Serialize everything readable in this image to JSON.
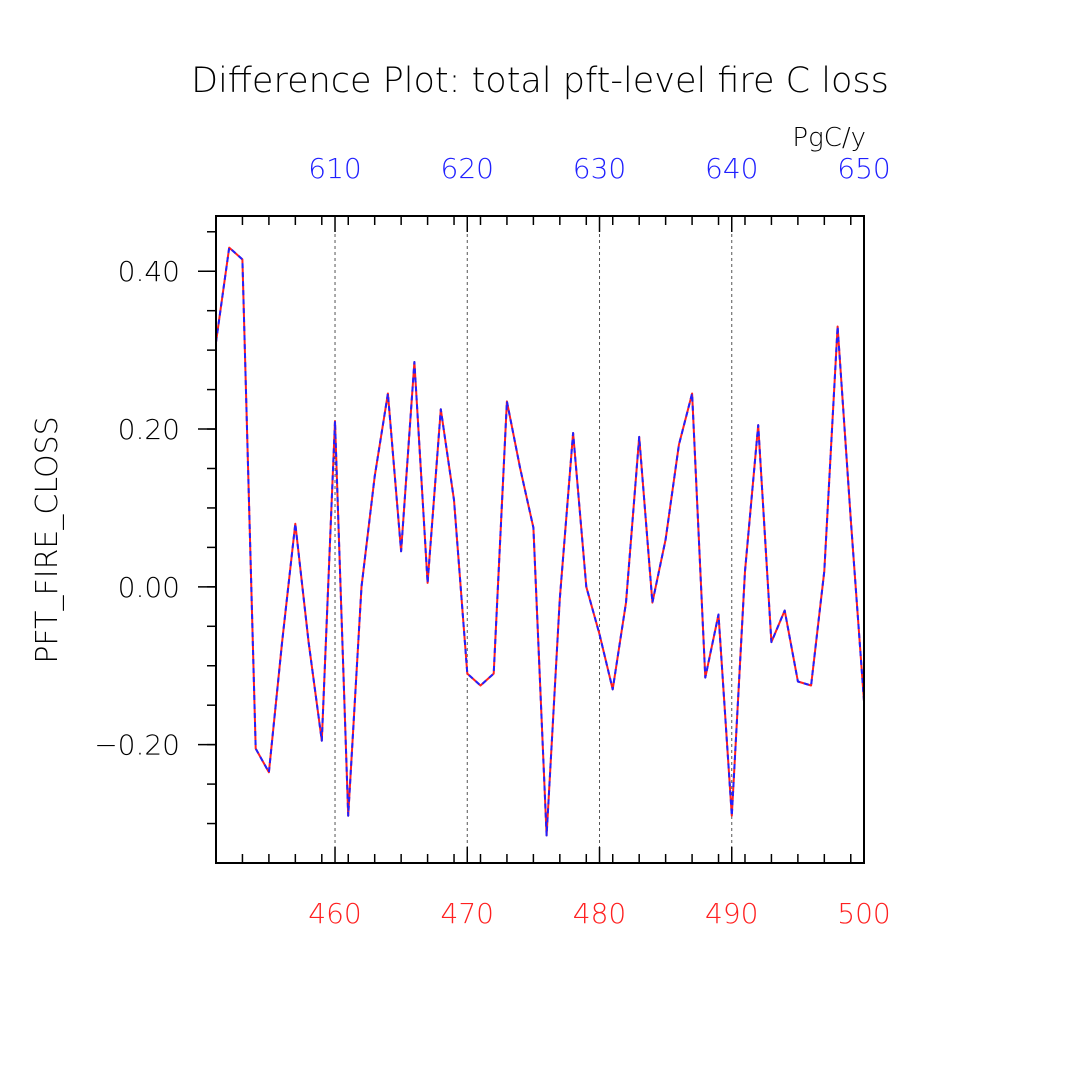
{
  "chart_data": {
    "type": "line",
    "title": "Difference Plot: total pft-level fire C loss",
    "units": "PgC/y",
    "ylabel": "PFT_FIRE_CLOSS",
    "xlim": [
      451,
      500
    ],
    "ylim": [
      -0.35,
      0.47
    ],
    "top_axis_offset": 150,
    "y_ticks": [
      -0.2,
      0.0,
      0.2,
      0.4
    ],
    "y_tick_labels": [
      "−0.20",
      "0.00",
      "0.20",
      "0.40"
    ],
    "x_ticks_bottom": [
      460,
      470,
      480,
      490,
      500
    ],
    "x_tick_labels_bottom": [
      "460",
      "470",
      "480",
      "490",
      "500"
    ],
    "x_tick_labels_top": [
      "610",
      "620",
      "630",
      "640",
      "650"
    ],
    "grid": "vertical dashed at major x ticks",
    "colors": {
      "bottom_axis": "#ff2020",
      "top_axis": "#2020ff",
      "line_solid": "#ff2020",
      "line_dash": "#2020ff"
    },
    "x": [
      451,
      452,
      453,
      454,
      455,
      456,
      457,
      458,
      459,
      460,
      461,
      462,
      463,
      464,
      465,
      466,
      467,
      468,
      469,
      470,
      471,
      472,
      473,
      474,
      475,
      476,
      477,
      478,
      479,
      480,
      481,
      482,
      483,
      484,
      485,
      486,
      487,
      488,
      489,
      490,
      491,
      492,
      493,
      494,
      495,
      496,
      497,
      498,
      499,
      500
    ],
    "series": [
      {
        "values": [
          0.31,
          0.43,
          0.415,
          -0.205,
          -0.235,
          -0.07,
          0.08,
          -0.07,
          -0.195,
          0.21,
          -0.29,
          0.0,
          0.14,
          0.245,
          0.045,
          0.285,
          0.005,
          0.225,
          0.11,
          -0.11,
          -0.125,
          -0.11,
          0.235,
          0.15,
          0.075,
          -0.315,
          -0.015,
          0.195,
          0.0,
          -0.06,
          -0.13,
          -0.02,
          0.19,
          -0.02,
          0.06,
          0.18,
          0.245,
          -0.115,
          -0.035,
          -0.29,
          0.02,
          0.205,
          -0.07,
          -0.03,
          -0.12,
          -0.125,
          0.02,
          0.33,
          0.085,
          -0.145
        ]
      }
    ]
  }
}
